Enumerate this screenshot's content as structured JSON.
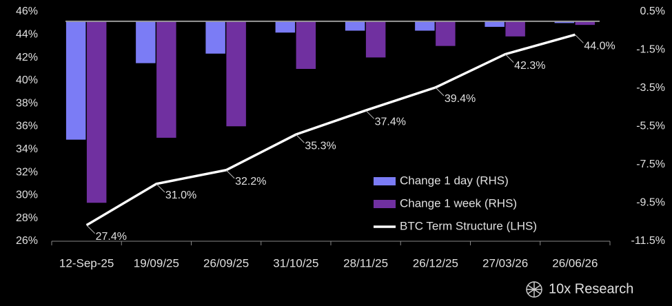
{
  "chart_data": {
    "type": "combo",
    "categories": [
      "12-Sep-25",
      "19/09/25",
      "26/09/25",
      "31/10/25",
      "28/11/25",
      "26/12/25",
      "27/03/26",
      "26/06/26"
    ],
    "series": [
      {
        "name": "Change 1 day (RHS)",
        "type": "bar",
        "axis": "y2",
        "color": "#7b7cf5",
        "values": [
          -6.2,
          -2.2,
          -1.7,
          -0.6,
          -0.5,
          -0.5,
          -0.3,
          -0.1
        ]
      },
      {
        "name": "Change 1 week (RHS)",
        "type": "bar",
        "axis": "y2",
        "color": "#7030a0",
        "values": [
          -9.5,
          -6.1,
          -5.5,
          -2.5,
          -1.9,
          -1.3,
          -0.8,
          -0.2
        ]
      },
      {
        "name": "BTC Term Structure (LHS)",
        "type": "line",
        "axis": "y",
        "color": "#ffffff",
        "values": [
          27.4,
          31.0,
          32.2,
          35.3,
          37.4,
          39.4,
          42.3,
          44.0
        ],
        "value_labels": [
          "27.4%",
          "31.0%",
          "32.2%",
          "35.3%",
          "37.4%",
          "39.4%",
          "42.3%",
          "44.0%"
        ]
      }
    ],
    "ylim": [
      26,
      46
    ],
    "yticks": [
      {
        "value": 26,
        "label": "26%"
      },
      {
        "value": 28,
        "label": "28%"
      },
      {
        "value": 30,
        "label": "30%"
      },
      {
        "value": 32,
        "label": "32%"
      },
      {
        "value": 34,
        "label": "34%"
      },
      {
        "value": 36,
        "label": "36%"
      },
      {
        "value": 38,
        "label": "38%"
      },
      {
        "value": 40,
        "label": "40%"
      },
      {
        "value": 42,
        "label": "42%"
      },
      {
        "value": 44,
        "label": "44%"
      },
      {
        "value": 46,
        "label": "46%"
      }
    ],
    "y2lim": [
      -11.5,
      0.5
    ],
    "y2ticks": [
      {
        "value": 0.5,
        "label": "0.5%"
      },
      {
        "value": -1.5,
        "label": "-1.5%"
      },
      {
        "value": -3.5,
        "label": "-3.5%"
      },
      {
        "value": -5.5,
        "label": "-5.5%"
      },
      {
        "value": -7.5,
        "label": "-7.5%"
      },
      {
        "value": -9.5,
        "label": "-9.5%"
      },
      {
        "value": -11.5,
        "label": "-11.5%"
      }
    ],
    "legend": "lower right",
    "watermark": "10x Research"
  }
}
